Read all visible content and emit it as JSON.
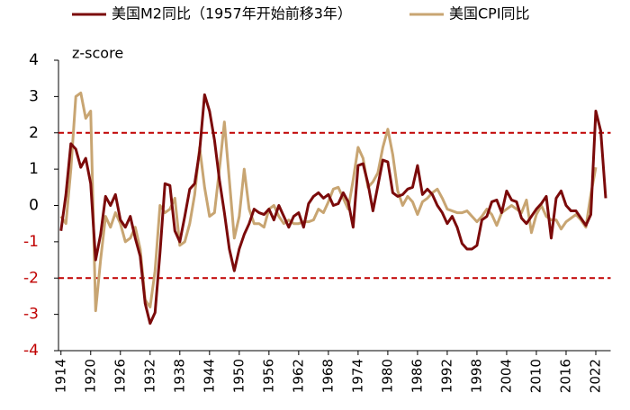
{
  "chart_data": {
    "type": "line",
    "annotations": [
      "z-score"
    ],
    "x": [
      1914,
      1915,
      1916,
      1917,
      1918,
      1919,
      1920,
      1921,
      1922,
      1923,
      1924,
      1925,
      1926,
      1927,
      1928,
      1929,
      1930,
      1931,
      1932,
      1933,
      1934,
      1935,
      1936,
      1937,
      1938,
      1939,
      1940,
      1941,
      1942,
      1943,
      1944,
      1945,
      1946,
      1947,
      1948,
      1949,
      1950,
      1951,
      1952,
      1953,
      1954,
      1955,
      1956,
      1957,
      1958,
      1959,
      1960,
      1961,
      1962,
      1963,
      1964,
      1965,
      1966,
      1967,
      1968,
      1969,
      1970,
      1971,
      1972,
      1973,
      1974,
      1975,
      1976,
      1977,
      1978,
      1979,
      1980,
      1981,
      1982,
      1983,
      1984,
      1985,
      1986,
      1987,
      1988,
      1989,
      1990,
      1991,
      1992,
      1993,
      1994,
      1995,
      1996,
      1997,
      1998,
      1999,
      2000,
      2001,
      2002,
      2003,
      2004,
      2005,
      2006,
      2007,
      2008,
      2009,
      2010,
      2011,
      2012,
      2013,
      2014,
      2015,
      2016,
      2017,
      2018,
      2019,
      2020,
      2021,
      2022,
      2023,
      2024
    ],
    "series": [
      {
        "name": "美国M2同比（1957年开始前移3年）",
        "color": "#7b0a0a",
        "values": [
          -0.7,
          0.3,
          1.7,
          1.55,
          1.05,
          1.3,
          0.6,
          -1.5,
          -0.8,
          0.25,
          0.0,
          0.3,
          -0.4,
          -0.6,
          -0.3,
          -0.9,
          -1.4,
          -2.7,
          -3.25,
          -2.95,
          -1.3,
          0.6,
          0.55,
          -0.7,
          -1.0,
          -0.3,
          0.45,
          0.6,
          1.5,
          3.05,
          2.6,
          1.8,
          0.7,
          -0.2,
          -1.2,
          -1.8,
          -1.2,
          -0.8,
          -0.5,
          -0.1,
          -0.2,
          -0.25,
          -0.1,
          -0.4,
          0.0,
          -0.3,
          -0.6,
          -0.3,
          -0.2,
          -0.6,
          0.05,
          0.25,
          0.35,
          0.2,
          0.3,
          0.0,
          0.05,
          0.35,
          0.1,
          -0.6,
          1.1,
          1.15,
          0.6,
          -0.15,
          0.55,
          1.25,
          1.2,
          0.35,
          0.25,
          0.3,
          0.45,
          0.5,
          1.1,
          0.3,
          0.45,
          0.3,
          0.0,
          -0.2,
          -0.5,
          -0.3,
          -0.6,
          -1.05,
          -1.2,
          -1.2,
          -1.1,
          -0.4,
          -0.3,
          0.1,
          0.15,
          -0.2,
          0.4,
          0.15,
          0.1,
          -0.35,
          -0.5,
          -0.3,
          -0.1,
          0.05,
          0.25,
          -0.9,
          0.2,
          0.4,
          0.0,
          -0.15,
          -0.15,
          -0.35,
          -0.55,
          -0.25,
          2.6,
          2.05,
          0.2
        ]
      },
      {
        "name": "美国CPI同比",
        "color": "#c8a572",
        "values": [
          -0.3,
          -0.5,
          1.0,
          3.0,
          3.1,
          2.4,
          2.6,
          -2.9,
          -1.5,
          -0.3,
          -0.6,
          -0.2,
          -0.5,
          -1.0,
          -0.9,
          -0.6,
          -1.2,
          -2.6,
          -2.8,
          -1.8,
          0.0,
          -0.2,
          -0.1,
          0.2,
          -1.1,
          -1.0,
          -0.5,
          0.3,
          1.6,
          0.5,
          -0.3,
          -0.2,
          1.0,
          2.3,
          0.7,
          -0.9,
          -0.3,
          1.0,
          -0.1,
          -0.5,
          -0.5,
          -0.6,
          -0.1,
          0.0,
          -0.3,
          -0.5,
          -0.4,
          -0.5,
          -0.5,
          -0.45,
          -0.45,
          -0.4,
          -0.1,
          -0.2,
          0.1,
          0.45,
          0.5,
          0.2,
          -0.1,
          0.7,
          1.6,
          1.3,
          0.5,
          0.65,
          0.9,
          1.6,
          2.1,
          1.4,
          0.4,
          0.0,
          0.25,
          0.1,
          -0.25,
          0.1,
          0.2,
          0.35,
          0.45,
          0.2,
          -0.1,
          -0.15,
          -0.2,
          -0.2,
          -0.15,
          -0.3,
          -0.45,
          -0.3,
          -0.1,
          -0.25,
          -0.55,
          -0.2,
          -0.1,
          0.0,
          -0.1,
          -0.2,
          0.15,
          -0.75,
          -0.25,
          0.0,
          -0.3,
          -0.4,
          -0.4,
          -0.65,
          -0.45,
          -0.35,
          -0.25,
          -0.4,
          -0.6,
          0.3,
          1.05,
          null,
          null
        ]
      }
    ],
    "xlim": [
      1913.5,
      2025
    ],
    "xticks": [
      1914,
      1920,
      1926,
      1932,
      1938,
      1944,
      1950,
      1956,
      1962,
      1968,
      1974,
      1980,
      1986,
      1992,
      1998,
      2004,
      2010,
      2016,
      2022
    ],
    "ylim": [
      -4,
      4
    ],
    "yticks": [
      4,
      3,
      2,
      1,
      0,
      -1,
      -2,
      -3,
      -4
    ],
    "negative_tick_color": "#c00000",
    "reference_lines": [
      2,
      -2
    ],
    "reference_line_color": "#c00000",
    "legend": "top"
  }
}
